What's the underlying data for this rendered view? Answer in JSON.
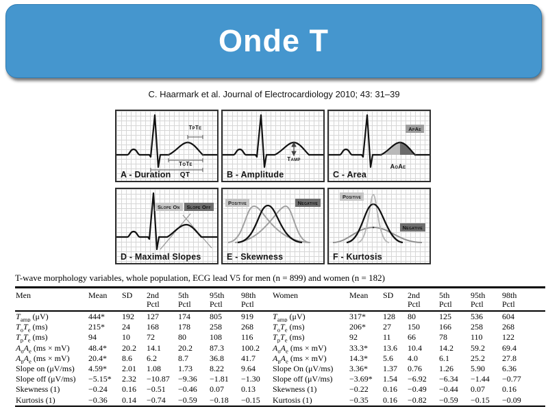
{
  "title": "Onde T",
  "citation": "C. Haarmark et al. Journal of Electrocardiology 2010; 43: 31–39",
  "colors": {
    "banner_blue": "#4596ce",
    "grid_line": "#d6d6d6",
    "trace_black": "#111111",
    "trace_gray": "#9e9e9e",
    "fill_light_gray": "#b9b9b9",
    "fill_dark_gray": "#6a6a6a"
  },
  "figure": {
    "panels": [
      {
        "title": "A - Duration",
        "labels": [
          "TpTe",
          "ToTe",
          "QT"
        ]
      },
      {
        "title": "B - Amplitude",
        "labels": [
          "Tamp"
        ]
      },
      {
        "title": "C - Area",
        "labels": [
          "ApAe",
          "AoAe"
        ]
      },
      {
        "title": "D - Maximal Slopes",
        "labels": [
          "Slope On",
          "Slope Off"
        ]
      },
      {
        "title": "E - Skewness",
        "labels": [
          "Positive",
          "Negative"
        ]
      },
      {
        "title": "F - Kurtosis",
        "labels": [
          "Positive",
          "Negative"
        ]
      }
    ]
  },
  "table": {
    "caption": "T-wave morphology variables, whole population, ECG lead V5 for men (n = 899) and women (n = 182)",
    "headers": [
      "Men",
      "Mean",
      "SD",
      "2nd\nPctl",
      "5th\nPctl",
      "95th\nPctl",
      "98th\nPctl",
      "Women",
      "Mean",
      "SD",
      "2nd\nPctl",
      "5th\nPctl",
      "95th\nPctl",
      "98th\nPctl"
    ],
    "rows": [
      {
        "men_label": "T_{amp} (μV)",
        "men": [
          "444*",
          "192",
          "127",
          "174",
          "805",
          "919"
        ],
        "women_label": "T_{amp} (μV)",
        "women": [
          "317*",
          "128",
          "80",
          "125",
          "536",
          "604"
        ]
      },
      {
        "men_label": "T_{o}T_{e} (ms)",
        "men": [
          "215*",
          "24",
          "168",
          "178",
          "258",
          "268"
        ],
        "women_label": "T_{o}T_{e} (ms)",
        "women": [
          "206*",
          "27",
          "150",
          "166",
          "258",
          "268"
        ]
      },
      {
        "men_label": "T_{p}T_{e} (ms)",
        "men": [
          "94",
          "10",
          "72",
          "80",
          "108",
          "116"
        ],
        "women_label": "T_{p}T_{e} (ms)",
        "women": [
          "92",
          "11",
          "66",
          "78",
          "110",
          "122"
        ]
      },
      {
        "men_label": "A_{o}A_{e} (ms × mV)",
        "men": [
          "48.4*",
          "20.2",
          "14.1",
          "20.2",
          "87.3",
          "100.2"
        ],
        "women_label": "A_{o}A_{e} (ms × mV)",
        "women": [
          "33.3*",
          "13.6",
          "10.4",
          "14.2",
          "59.2",
          "69.4"
        ]
      },
      {
        "men_label": "A_{p}A_{e} (ms × mV)",
        "men": [
          "20.4*",
          "8.6",
          "6.2",
          "8.7",
          "36.8",
          "41.7"
        ],
        "women_label": "A_{p}A_{e} (ms × mV)",
        "women": [
          "14.3*",
          "5.6",
          "4.0",
          "6.1",
          "25.2",
          "27.8"
        ]
      },
      {
        "men_label": "Slope on (μV/ms)",
        "men": [
          "4.59*",
          "2.01",
          "1.08",
          "1.73",
          "8.22",
          "9.64"
        ],
        "women_label": "Slope On (μV/ms)",
        "women": [
          "3.36*",
          "1.37",
          "0.76",
          "1.26",
          "5.90",
          "6.36"
        ]
      },
      {
        "men_label": "Slope off (μV/ms)",
        "men": [
          "−5.15*",
          "2.32",
          "−10.87",
          "−9.36",
          "−1.81",
          "−1.30"
        ],
        "women_label": "Slope off (μV/ms)",
        "women": [
          "−3.69*",
          "1.54",
          "−6.92",
          "−6.34",
          "−1.44",
          "−0.77"
        ]
      },
      {
        "men_label": "Skewness (1)",
        "men": [
          "−0.24",
          "0.16",
          "−0.51",
          "−0.46",
          "0.07",
          "0.13"
        ],
        "women_label": "Skewness (1)",
        "women": [
          "−0.22",
          "0.16",
          "−0.49",
          "−0.44",
          "0.07",
          "0.16"
        ]
      },
      {
        "men_label": "Kurtosis (1)",
        "men": [
          "−0.36",
          "0.14",
          "−0.74",
          "−0.59",
          "−0.18",
          "−0.15"
        ],
        "women_label": "Kurtosis (1)",
        "women": [
          "−0.35",
          "0.16",
          "−0.82",
          "−0.59",
          "−0.15",
          "−0.09"
        ]
      }
    ]
  }
}
